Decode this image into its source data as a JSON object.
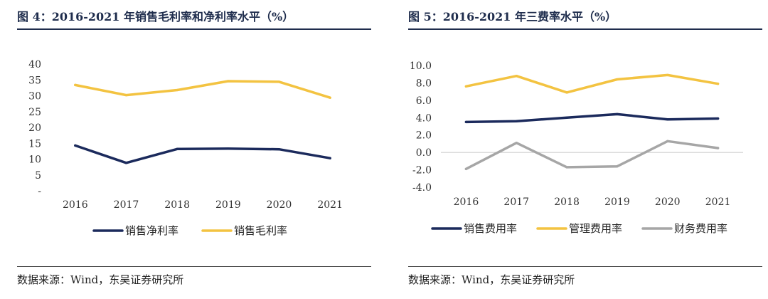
{
  "left": {
    "figure_title": "图 4：2016-2021 年销售毛利率和净利率水平（%）",
    "source": "数据来源：Wind，东吴证券研究所"
  },
  "right": {
    "figure_title": "图 5：2016-2021 年三费率水平（%）",
    "source": "数据来源：Wind，东吴证券研究所"
  },
  "chart_data": [
    {
      "type": "line",
      "title": "2016-2021 年销售毛利率和净利率水平（%）",
      "categories": [
        "2016",
        "2017",
        "2018",
        "2019",
        "2020",
        "2021"
      ],
      "yticks": [
        "40",
        "35",
        "30",
        "25",
        "20",
        "15",
        "10",
        "5",
        "-"
      ],
      "ylim": [
        0,
        40
      ],
      "grid": false,
      "legend_position": "bottom",
      "series": [
        {
          "name": "销售净利率",
          "color": "#1b2a5c",
          "values": [
            14.3,
            8.8,
            13.2,
            13.3,
            13.1,
            10.3
          ]
        },
        {
          "name": "销售毛利率",
          "color": "#f3c341",
          "values": [
            33.4,
            30.2,
            31.8,
            34.6,
            34.4,
            29.4
          ]
        }
      ]
    },
    {
      "type": "line",
      "title": "2016-2021 年三费率水平（%）",
      "categories": [
        "2016",
        "2017",
        "2018",
        "2019",
        "2020",
        "2021"
      ],
      "yticks": [
        "10.0",
        "8.0",
        "6.0",
        "4.0",
        "2.0",
        "0.0",
        "-2.0",
        "-4.0"
      ],
      "ylim": [
        -4,
        10
      ],
      "grid": false,
      "zero_line": true,
      "legend_position": "bottom",
      "series": [
        {
          "name": "销售费用率",
          "color": "#1b2a5c",
          "values": [
            3.5,
            3.6,
            4.0,
            4.4,
            3.8,
            3.9
          ]
        },
        {
          "name": "管理费用率",
          "color": "#f3c341",
          "values": [
            7.6,
            8.8,
            6.9,
            8.4,
            8.9,
            7.9
          ]
        },
        {
          "name": "财务费用率",
          "color": "#a6a6a6",
          "values": [
            -1.9,
            1.1,
            -1.7,
            -1.6,
            1.3,
            0.5
          ]
        }
      ]
    }
  ]
}
